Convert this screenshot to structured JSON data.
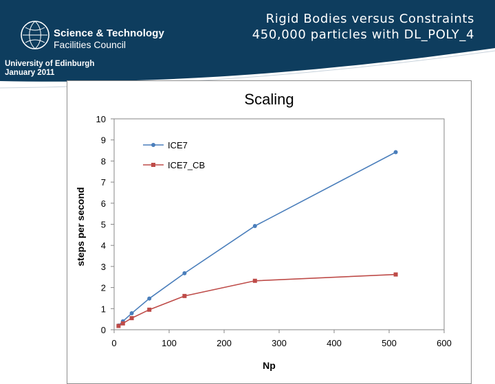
{
  "header": {
    "title_line1": "Rigid Bodies versus Constraints",
    "title_line2": "450,000 particles with DL_POLY_4",
    "logo_line1": "Science & Technology",
    "logo_line2": "Facilities Council",
    "org_line1": "University of Edinburgh",
    "org_line2": "January 2011"
  },
  "colors": {
    "header_bg": "#0e3d5e",
    "series_ice7": "#4a7ebb",
    "series_ice7_cb": "#be4b48"
  },
  "chart_data": {
    "type": "line",
    "title": "Scaling",
    "xlabel": "Np",
    "ylabel": "steps per second",
    "xlim": [
      0,
      600
    ],
    "ylim": [
      0,
      10
    ],
    "xticks": [
      0,
      100,
      200,
      300,
      400,
      500,
      600
    ],
    "yticks": [
      0,
      1,
      2,
      3,
      4,
      5,
      6,
      7,
      8,
      9,
      10
    ],
    "grid": false,
    "legend": "top-left",
    "series": [
      {
        "name": "ICE7",
        "color": "#4a7ebb",
        "marker": "circle",
        "x": [
          8,
          16,
          32,
          64,
          128,
          256,
          512
        ],
        "y": [
          0.2,
          0.4,
          0.78,
          1.48,
          2.68,
          4.92,
          8.42
        ]
      },
      {
        "name": "ICE7_CB",
        "color": "#be4b48",
        "marker": "square",
        "x": [
          8,
          16,
          32,
          64,
          128,
          256,
          512
        ],
        "y": [
          0.18,
          0.3,
          0.55,
          0.95,
          1.6,
          2.32,
          2.62
        ]
      }
    ]
  }
}
